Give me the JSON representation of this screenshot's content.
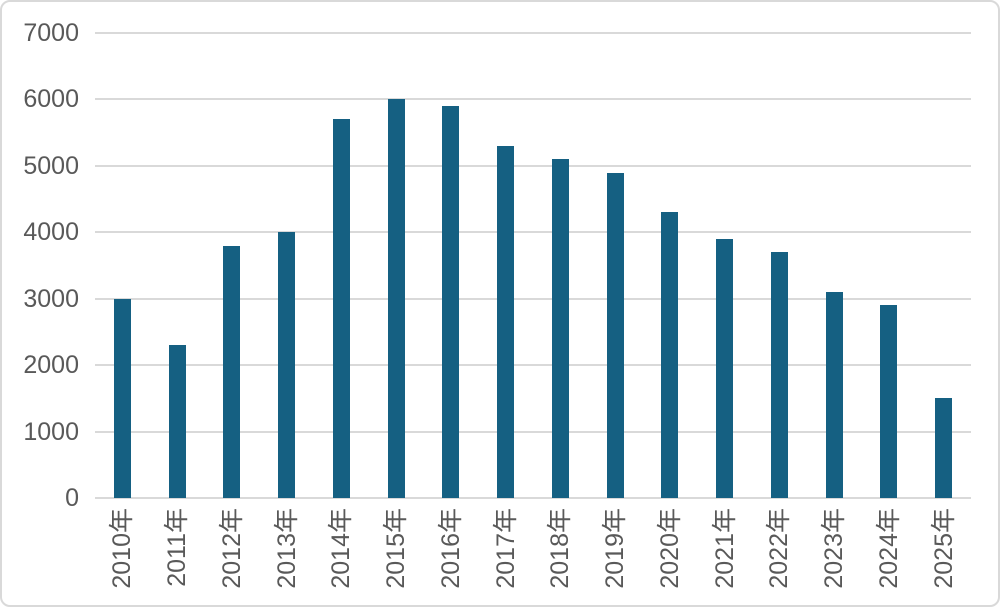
{
  "chart_data": {
    "type": "bar",
    "title": "",
    "xlabel": "",
    "ylabel": "",
    "categories": [
      "2010年",
      "2011年",
      "2012年",
      "2013年",
      "2014年",
      "2015年",
      "2016年",
      "2017年",
      "2018年",
      "2019年",
      "2020年",
      "2021年",
      "2022年",
      "2023年",
      "2024年",
      "2025年"
    ],
    "values": [
      3000,
      2300,
      3800,
      4000,
      5700,
      6000,
      5900,
      5300,
      5100,
      4900,
      4300,
      3900,
      3700,
      3100,
      2900,
      1500
    ],
    "ylim": [
      0,
      7000
    ],
    "yticks": [
      0,
      1000,
      2000,
      3000,
      4000,
      5000,
      6000,
      7000
    ],
    "grid": true,
    "legend": false,
    "colors": {
      "bar": "#156082",
      "gridline": "#d9d9d9",
      "axis_text": "#595959",
      "background": "#ffffff",
      "border": "#d9d9d9"
    }
  }
}
